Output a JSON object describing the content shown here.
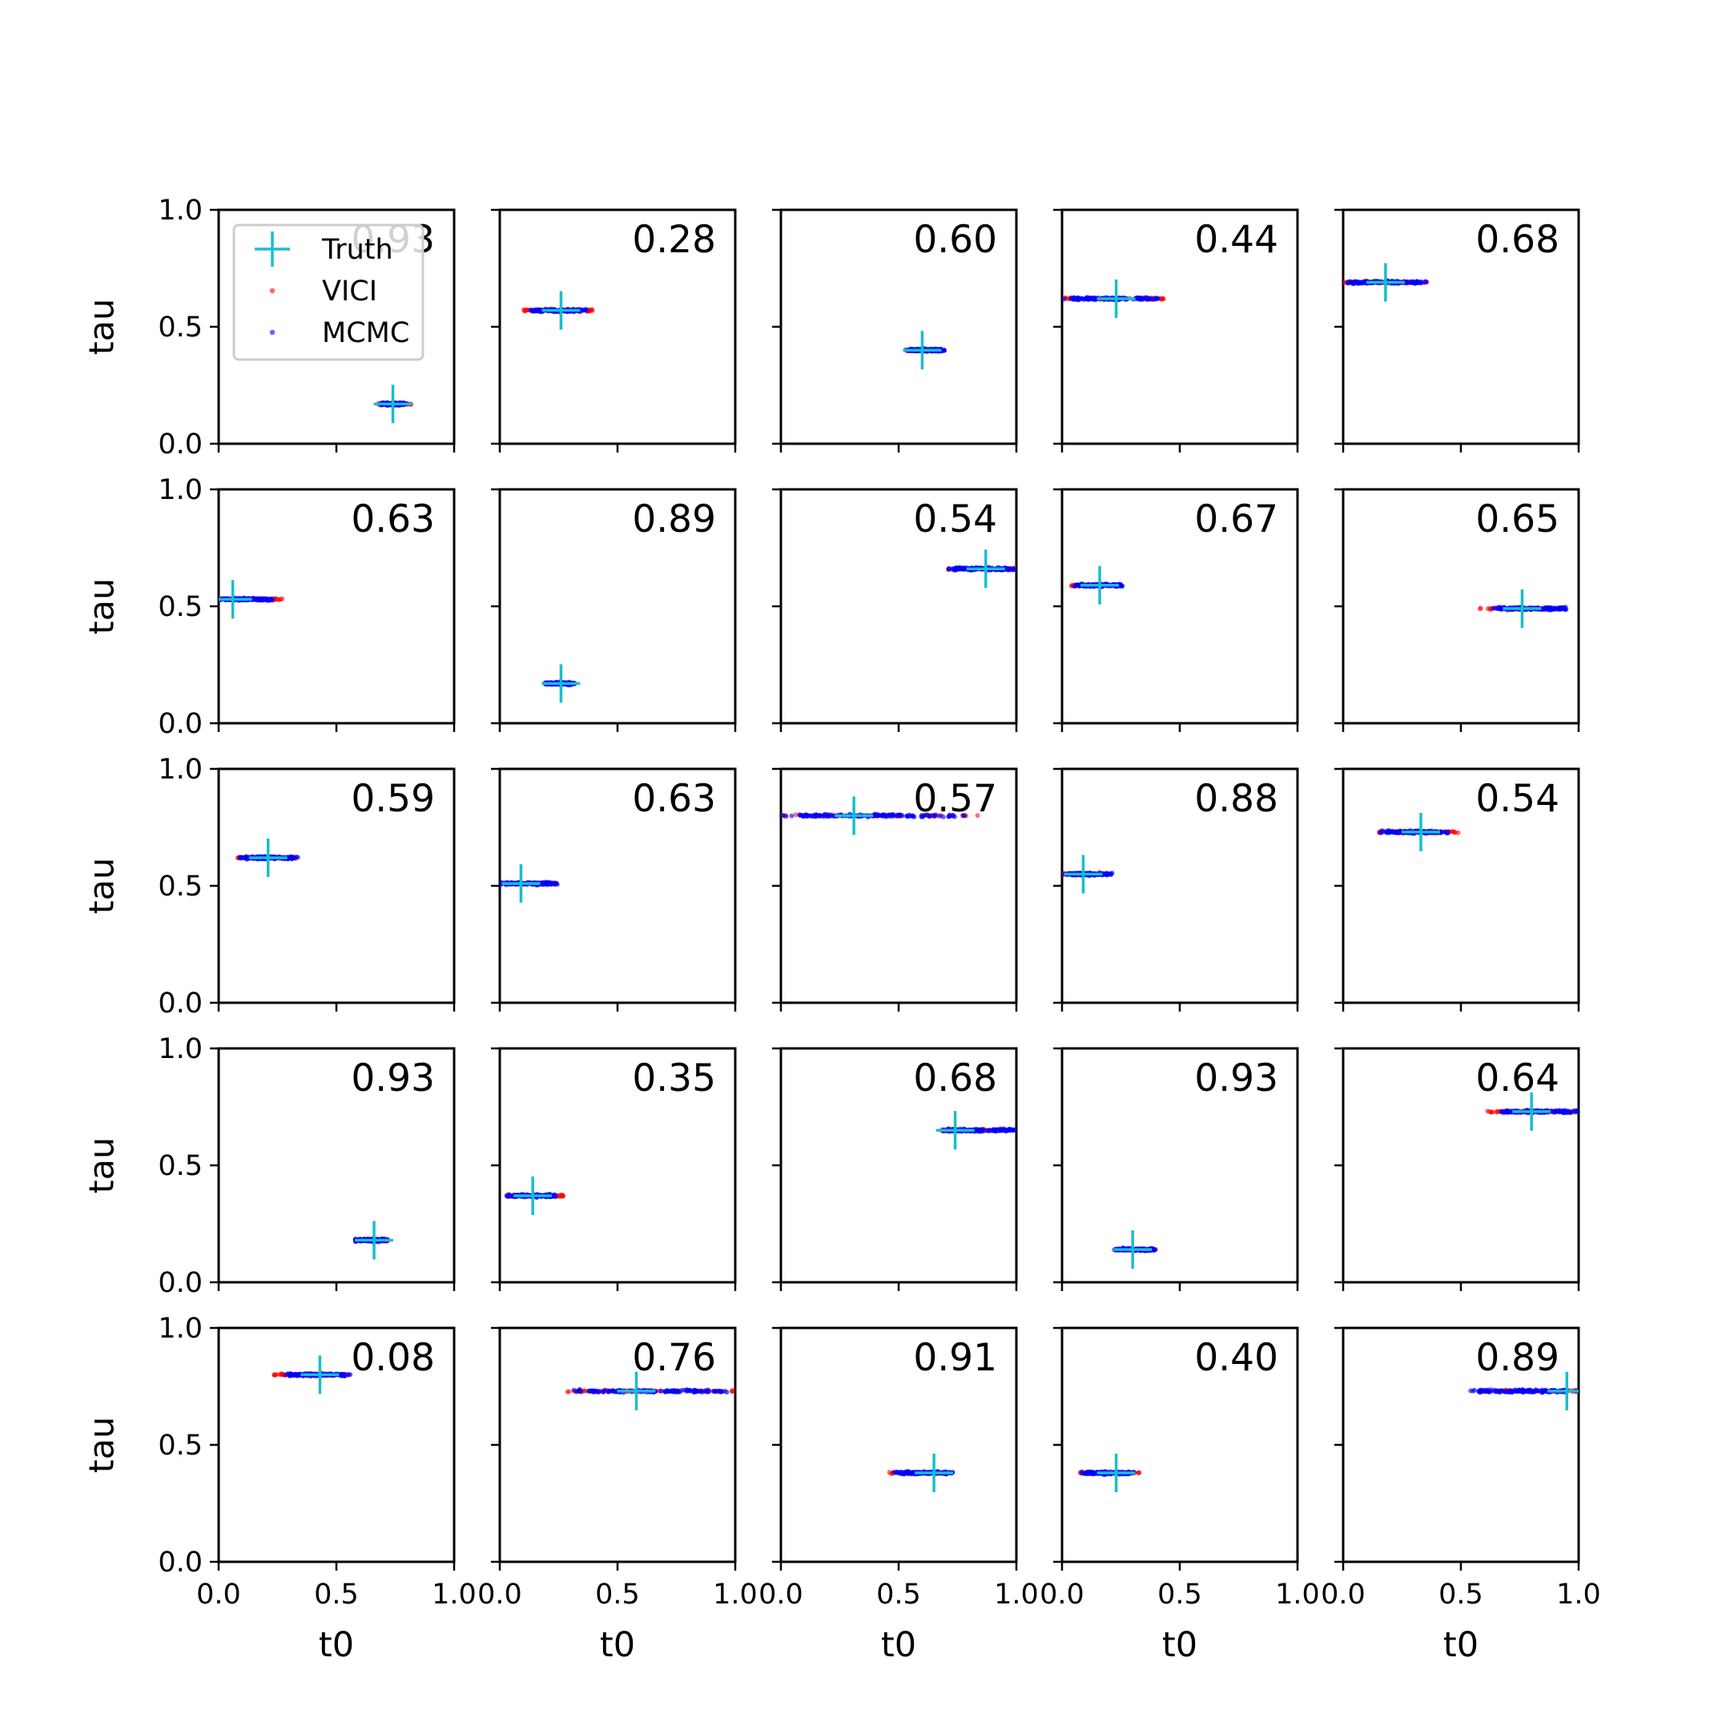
{
  "chart_data": {
    "type": "scatter",
    "layout": {
      "rows": 5,
      "cols": 5
    },
    "xlabel": "t0",
    "ylabel": "tau",
    "xlim": [
      0,
      1
    ],
    "ylim": [
      0,
      1
    ],
    "xticks": [
      "0.0",
      "0.5",
      "1.0"
    ],
    "yticks": [
      "0.0",
      "0.5",
      "1.0"
    ],
    "legend": {
      "placement": "upper-left of first panel",
      "entries": [
        {
          "label": "Truth",
          "marker": "plus",
          "color": "#17becf"
        },
        {
          "label": "VICI",
          "marker": "dot",
          "color": "#ff0000"
        },
        {
          "label": "MCMC",
          "marker": "dot",
          "color": "#0000ff"
        }
      ]
    },
    "colors": {
      "truth": "#17becf",
      "vici": "#ff0000",
      "mcmc": "#0000ff"
    },
    "panels": [
      {
        "value": "0.93",
        "truth": [
          0.74,
          0.17
        ],
        "vici_range": [
          0.67,
          0.82
        ],
        "mcmc_range": [
          0.68,
          0.8
        ]
      },
      {
        "value": "0.28",
        "truth": [
          0.26,
          0.57
        ],
        "vici_range": [
          0.1,
          0.4
        ],
        "mcmc_range": [
          0.12,
          0.37
        ]
      },
      {
        "value": "0.60",
        "truth": [
          0.6,
          0.4
        ],
        "vici_range": [
          0.53,
          0.68
        ],
        "mcmc_range": [
          0.53,
          0.7
        ]
      },
      {
        "value": "0.44",
        "truth": [
          0.23,
          0.62
        ],
        "vici_range": [
          0.0,
          0.44
        ],
        "mcmc_range": [
          0.0,
          0.42
        ]
      },
      {
        "value": "0.68",
        "truth": [
          0.18,
          0.69
        ],
        "vici_range": [
          0.0,
          0.37
        ],
        "mcmc_range": [
          0.0,
          0.36
        ]
      },
      {
        "value": "0.63",
        "truth": [
          0.06,
          0.53
        ],
        "vici_range": [
          0.0,
          0.27
        ],
        "mcmc_range": [
          0.0,
          0.24
        ]
      },
      {
        "value": "0.89",
        "truth": [
          0.26,
          0.17
        ],
        "vici_range": [
          0.19,
          0.32
        ],
        "mcmc_range": [
          0.19,
          0.32
        ]
      },
      {
        "value": "0.54",
        "truth": [
          0.87,
          0.66
        ],
        "vici_range": [
          0.71,
          1.0
        ],
        "mcmc_range": [
          0.71,
          1.0
        ]
      },
      {
        "value": "0.67",
        "truth": [
          0.16,
          0.59
        ],
        "vici_range": [
          0.04,
          0.25
        ],
        "mcmc_range": [
          0.05,
          0.27
        ]
      },
      {
        "value": "0.65",
        "truth": [
          0.76,
          0.49
        ],
        "vici_range": [
          0.58,
          0.93
        ],
        "mcmc_range": [
          0.62,
          0.98
        ]
      },
      {
        "value": "0.59",
        "truth": [
          0.21,
          0.62
        ],
        "vici_range": [
          0.08,
          0.33
        ],
        "mcmc_range": [
          0.09,
          0.34
        ]
      },
      {
        "value": "0.63",
        "truth": [
          0.09,
          0.51
        ],
        "vici_range": [
          0.0,
          0.24
        ],
        "mcmc_range": [
          0.0,
          0.25
        ]
      },
      {
        "value": "0.57",
        "truth": [
          0.31,
          0.8
        ],
        "vici_range": [
          0.0,
          0.84
        ],
        "mcmc_range": [
          0.0,
          0.8
        ]
      },
      {
        "value": "0.88",
        "truth": [
          0.09,
          0.55
        ],
        "vici_range": [
          0.0,
          0.18
        ],
        "mcmc_range": [
          0.0,
          0.22
        ]
      },
      {
        "value": "0.54",
        "truth": [
          0.33,
          0.73
        ],
        "vici_range": [
          0.15,
          0.49
        ],
        "mcmc_range": [
          0.15,
          0.45
        ]
      },
      {
        "value": "0.93",
        "truth": [
          0.66,
          0.18
        ],
        "vici_range": [
          0.58,
          0.72
        ],
        "mcmc_range": [
          0.58,
          0.72
        ]
      },
      {
        "value": "0.35",
        "truth": [
          0.14,
          0.37
        ],
        "vici_range": [
          0.03,
          0.27
        ],
        "mcmc_range": [
          0.03,
          0.25
        ]
      },
      {
        "value": "0.68",
        "truth": [
          0.74,
          0.65
        ],
        "vici_range": [
          0.68,
          1.0
        ],
        "mcmc_range": [
          0.68,
          1.0
        ]
      },
      {
        "value": "0.93",
        "truth": [
          0.3,
          0.14
        ],
        "vici_range": [
          0.22,
          0.4
        ],
        "mcmc_range": [
          0.22,
          0.4
        ]
      },
      {
        "value": "0.64",
        "truth": [
          0.8,
          0.73
        ],
        "vici_range": [
          0.61,
          1.0
        ],
        "mcmc_range": [
          0.65,
          1.0
        ]
      },
      {
        "value": "0.08",
        "truth": [
          0.43,
          0.8
        ],
        "vici_range": [
          0.23,
          0.55
        ],
        "mcmc_range": [
          0.27,
          0.57
        ]
      },
      {
        "value": "0.76",
        "truth": [
          0.58,
          0.73
        ],
        "vici_range": [
          0.27,
          1.0
        ],
        "mcmc_range": [
          0.3,
          0.98
        ]
      },
      {
        "value": "0.91",
        "truth": [
          0.65,
          0.38
        ],
        "vici_range": [
          0.46,
          0.72
        ],
        "mcmc_range": [
          0.48,
          0.73
        ]
      },
      {
        "value": "0.40",
        "truth": [
          0.23,
          0.38
        ],
        "vici_range": [
          0.07,
          0.33
        ],
        "mcmc_range": [
          0.08,
          0.31
        ]
      },
      {
        "value": "0.89",
        "truth": [
          0.95,
          0.73
        ],
        "vici_range": [
          0.58,
          1.0
        ],
        "mcmc_range": [
          0.53,
          1.0
        ]
      }
    ]
  }
}
